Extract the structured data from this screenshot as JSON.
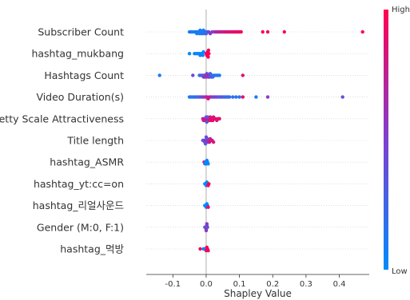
{
  "chart_data": {
    "type": "scatter",
    "subtype": "shap-beeswarm",
    "title": "",
    "xlabel": "Shapley Value",
    "xlim": [
      -0.18,
      0.49
    ],
    "x_ticks": [
      "-0.1",
      "0.0",
      "0.1",
      "0.2",
      "0.3",
      "0.4"
    ],
    "x_tick_values": [
      -0.1,
      0.0,
      0.1,
      0.2,
      0.3,
      0.4
    ],
    "colorbar": {
      "high_label": "High",
      "low_label": "Low",
      "high_color": "#ff0052",
      "low_color": "#008bfb"
    },
    "features": [
      {
        "name": "Subscriber Count",
        "points": [
          [
            -0.05,
            0.1
          ],
          [
            -0.045,
            0.15
          ],
          [
            -0.04,
            0.05
          ],
          [
            -0.035,
            0.1
          ],
          [
            -0.03,
            0.2
          ],
          [
            -0.028,
            0.05
          ],
          [
            -0.025,
            0.1
          ],
          [
            -0.022,
            0.15
          ],
          [
            -0.02,
            0.08
          ],
          [
            -0.018,
            0.12
          ],
          [
            -0.016,
            0.05
          ],
          [
            -0.014,
            0.2
          ],
          [
            -0.012,
            0.1
          ],
          [
            -0.01,
            0.15
          ],
          [
            -0.008,
            0.06
          ],
          [
            -0.006,
            0.1
          ],
          [
            -0.004,
            0.12
          ],
          [
            -0.002,
            0.2
          ],
          [
            0.0,
            0.25
          ],
          [
            0.003,
            0.3
          ],
          [
            0.008,
            0.4
          ],
          [
            0.012,
            0.5
          ],
          [
            0.018,
            0.55
          ],
          [
            0.025,
            0.6
          ],
          [
            0.03,
            0.65
          ],
          [
            0.035,
            0.7
          ],
          [
            0.04,
            0.72
          ],
          [
            0.045,
            0.75
          ],
          [
            0.05,
            0.78
          ],
          [
            0.055,
            0.8
          ],
          [
            0.06,
            0.8
          ],
          [
            0.065,
            0.82
          ],
          [
            0.07,
            0.85
          ],
          [
            0.075,
            0.85
          ],
          [
            0.08,
            0.88
          ],
          [
            0.085,
            0.9
          ],
          [
            0.09,
            0.9
          ],
          [
            0.095,
            0.92
          ],
          [
            0.1,
            0.92
          ],
          [
            0.105,
            0.95
          ],
          [
            0.17,
            0.95
          ],
          [
            0.185,
            0.97
          ],
          [
            0.235,
            0.98
          ],
          [
            0.47,
            1.0
          ]
        ]
      },
      {
        "name": "hashtag_mukbang",
        "points": [
          [
            -0.05,
            0.0
          ],
          [
            -0.035,
            0.05
          ],
          [
            -0.03,
            0.0
          ],
          [
            -0.025,
            0.05
          ],
          [
            -0.02,
            0.0
          ],
          [
            -0.018,
            0.05
          ],
          [
            -0.015,
            0.02
          ],
          [
            -0.012,
            0.0
          ],
          [
            -0.01,
            0.05
          ],
          [
            -0.008,
            0.02
          ],
          [
            0.0,
            1.0
          ],
          [
            0.002,
            1.0
          ],
          [
            0.003,
            0.95
          ],
          [
            0.004,
            1.0
          ],
          [
            0.005,
            0.95
          ],
          [
            0.006,
            1.0
          ],
          [
            0.007,
            0.95
          ],
          [
            0.008,
            1.0
          ]
        ]
      },
      {
        "name": "Hashtags Count",
        "points": [
          [
            -0.14,
            0.1
          ],
          [
            -0.04,
            0.4
          ],
          [
            -0.02,
            0.2
          ],
          [
            -0.015,
            0.3
          ],
          [
            -0.01,
            0.2
          ],
          [
            -0.008,
            0.5
          ],
          [
            -0.006,
            0.4
          ],
          [
            -0.004,
            0.6
          ],
          [
            -0.002,
            0.5
          ],
          [
            0.0,
            0.6
          ],
          [
            0.002,
            0.4
          ],
          [
            0.004,
            0.7
          ],
          [
            0.006,
            0.5
          ],
          [
            0.008,
            0.6
          ],
          [
            0.01,
            0.5
          ],
          [
            0.012,
            0.3
          ],
          [
            0.014,
            0.2
          ],
          [
            0.016,
            0.4
          ],
          [
            0.018,
            0.3
          ],
          [
            0.02,
            0.2
          ],
          [
            0.025,
            0.2
          ],
          [
            0.03,
            0.1
          ],
          [
            0.035,
            0.15
          ],
          [
            0.04,
            0.1
          ],
          [
            0.11,
            0.85
          ]
        ]
      },
      {
        "name": "Video Duration(s)",
        "points": [
          [
            -0.05,
            0.1
          ],
          [
            -0.045,
            0.2
          ],
          [
            -0.04,
            0.1
          ],
          [
            -0.035,
            0.2
          ],
          [
            -0.03,
            0.3
          ],
          [
            -0.025,
            0.2
          ],
          [
            -0.02,
            0.3
          ],
          [
            -0.015,
            0.4
          ],
          [
            -0.01,
            0.5
          ],
          [
            -0.005,
            0.6
          ],
          [
            0.0,
            0.7
          ],
          [
            0.003,
            0.75
          ],
          [
            0.006,
            0.8
          ],
          [
            0.01,
            0.85
          ],
          [
            0.015,
            0.6
          ],
          [
            0.02,
            0.5
          ],
          [
            0.025,
            0.4
          ],
          [
            0.03,
            0.5
          ],
          [
            0.035,
            0.4
          ],
          [
            0.04,
            0.3
          ],
          [
            0.045,
            0.4
          ],
          [
            0.05,
            0.3
          ],
          [
            0.055,
            0.25
          ],
          [
            0.06,
            0.2
          ],
          [
            0.065,
            0.25
          ],
          [
            0.07,
            0.2
          ],
          [
            0.08,
            0.2
          ],
          [
            0.09,
            0.15
          ],
          [
            0.1,
            0.15
          ],
          [
            0.11,
            0.9
          ],
          [
            0.15,
            0.1
          ],
          [
            0.185,
            0.5
          ],
          [
            0.41,
            0.4
          ]
        ]
      },
      {
        "name": "Pretty Scale Attractiveness",
        "points": [
          [
            -0.01,
            0.7
          ],
          [
            -0.008,
            0.75
          ],
          [
            -0.005,
            0.8
          ],
          [
            -0.003,
            0.85
          ],
          [
            0.0,
            0.9
          ],
          [
            0.002,
            0.85
          ],
          [
            0.004,
            0.9
          ],
          [
            0.006,
            0.85
          ],
          [
            0.008,
            0.9
          ],
          [
            0.01,
            0.88
          ],
          [
            0.012,
            0.9
          ],
          [
            0.014,
            0.85
          ],
          [
            0.016,
            0.9
          ],
          [
            0.018,
            0.85
          ],
          [
            0.02,
            0.9
          ],
          [
            0.022,
            0.85
          ],
          [
            0.025,
            0.9
          ],
          [
            0.028,
            0.88
          ],
          [
            0.032,
            0.85
          ],
          [
            0.036,
            0.9
          ],
          [
            0.04,
            0.85
          ],
          [
            0.0,
            0.3
          ],
          [
            0.002,
            0.35
          ],
          [
            0.004,
            0.4
          ]
        ]
      },
      {
        "name": "Title length",
        "points": [
          [
            -0.01,
            0.4
          ],
          [
            -0.006,
            0.3
          ],
          [
            -0.004,
            0.5
          ],
          [
            -0.002,
            0.6
          ],
          [
            0.0,
            0.5
          ],
          [
            0.002,
            0.6
          ],
          [
            0.004,
            0.7
          ],
          [
            0.006,
            0.6
          ],
          [
            0.008,
            0.7
          ],
          [
            0.01,
            0.8
          ],
          [
            0.012,
            0.7
          ],
          [
            0.015,
            0.85
          ],
          [
            0.018,
            0.8
          ],
          [
            0.022,
            0.85
          ],
          [
            -0.002,
            0.3
          ],
          [
            0.0,
            0.4
          ],
          [
            0.003,
            0.45
          ]
        ]
      },
      {
        "name": "hashtag_ASMR",
        "points": [
          [
            -0.006,
            1.0
          ],
          [
            -0.004,
            0.0
          ],
          [
            -0.002,
            0.05
          ],
          [
            0.0,
            0.02
          ],
          [
            0.002,
            0.05
          ],
          [
            0.004,
            0.02
          ],
          [
            0.006,
            0.0
          ]
        ]
      },
      {
        "name": "hashtag_yt:cc=on",
        "points": [
          [
            -0.004,
            0.0
          ],
          [
            -0.002,
            0.05
          ],
          [
            0.0,
            0.02
          ],
          [
            0.002,
            0.0
          ],
          [
            0.004,
            0.05
          ],
          [
            0.006,
            1.0
          ],
          [
            0.008,
            1.0
          ]
        ]
      },
      {
        "name": "hashtag_리얼사운드",
        "points": [
          [
            -0.004,
            0.0
          ],
          [
            -0.002,
            0.05
          ],
          [
            0.0,
            0.02
          ],
          [
            0.002,
            0.0
          ],
          [
            0.004,
            0.05
          ],
          [
            0.006,
            1.0
          ]
        ]
      },
      {
        "name": "Gender (M:0, F:1)",
        "points": [
          [
            -0.004,
            0.3
          ],
          [
            -0.002,
            0.4
          ],
          [
            0.0,
            0.35
          ],
          [
            0.002,
            0.45
          ],
          [
            0.004,
            0.4
          ],
          [
            0.0,
            0.6
          ],
          [
            0.002,
            0.55
          ]
        ]
      },
      {
        "name": "hashtag_먹방",
        "points": [
          [
            -0.018,
            0.95
          ],
          [
            -0.008,
            0.0
          ],
          [
            -0.004,
            0.05
          ],
          [
            -0.002,
            0.02
          ],
          [
            0.0,
            0.9
          ],
          [
            0.002,
            0.95
          ],
          [
            0.004,
            1.0
          ],
          [
            0.006,
            0.95
          ]
        ]
      }
    ]
  }
}
